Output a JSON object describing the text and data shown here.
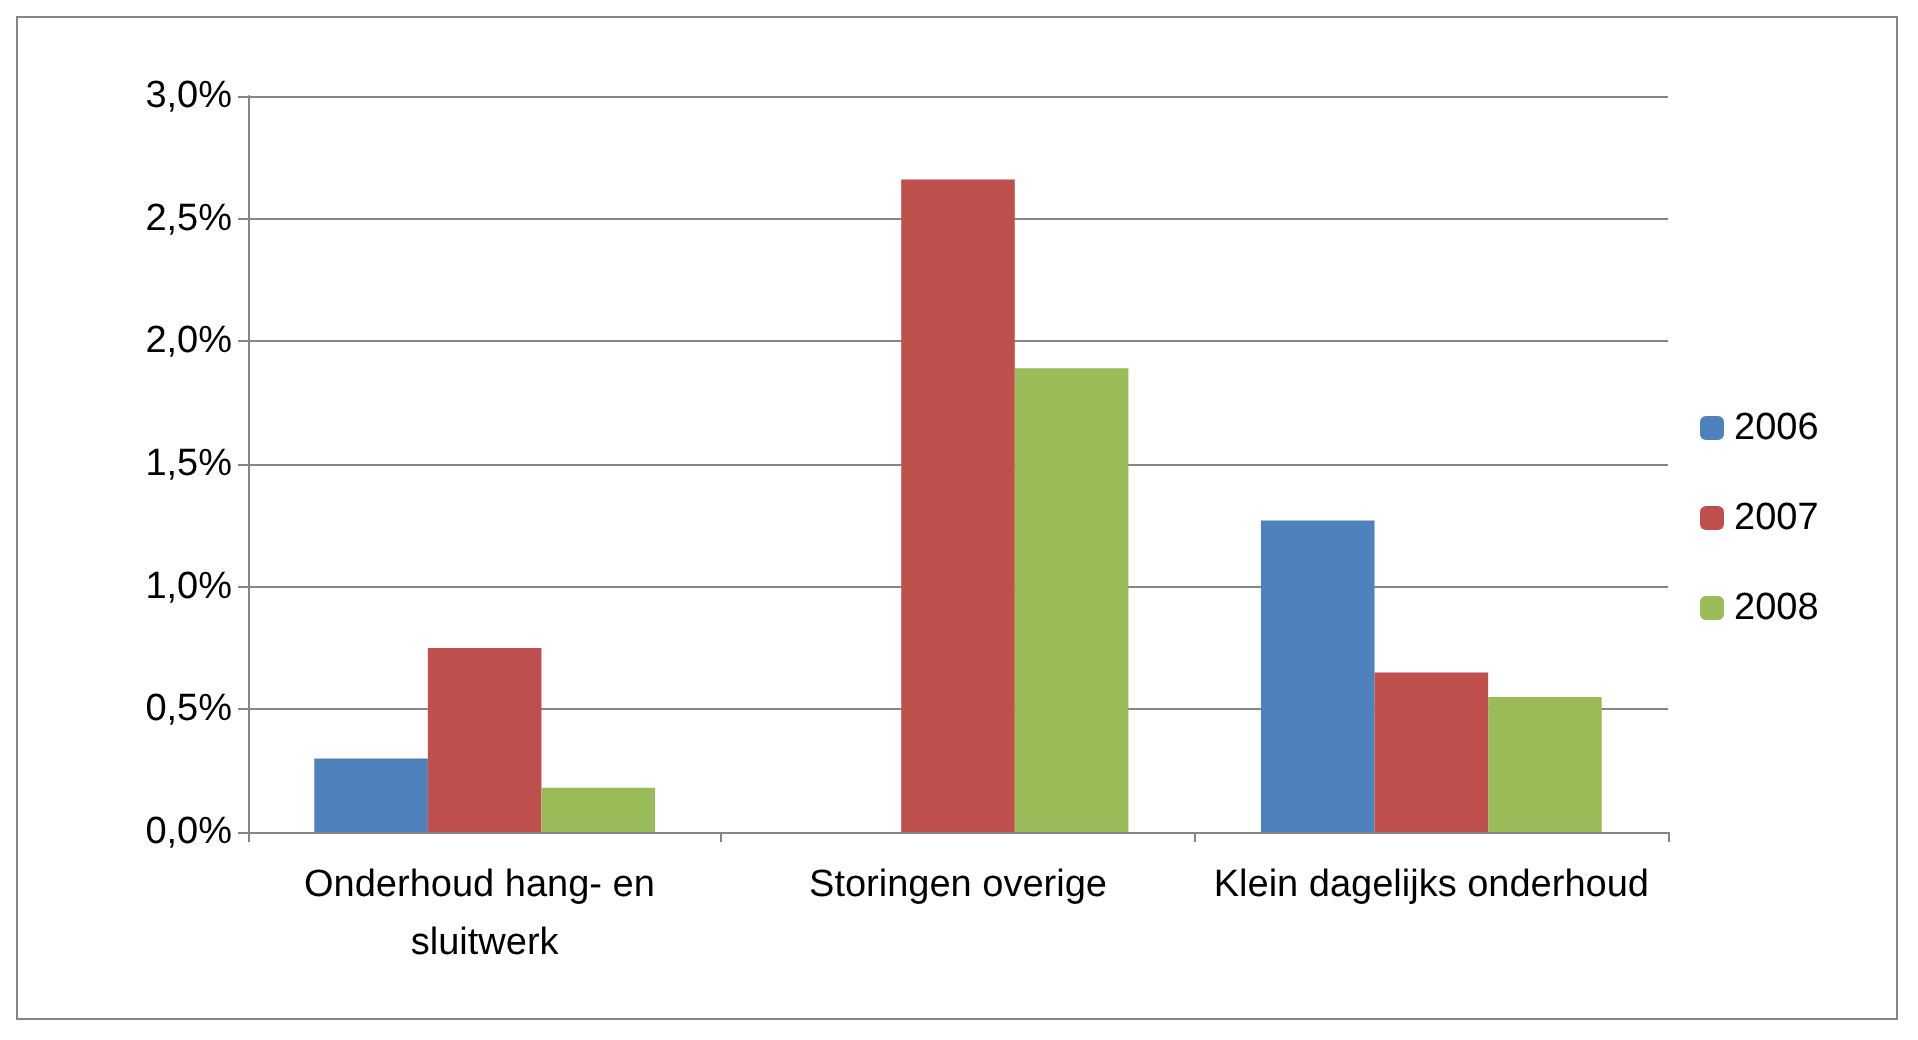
{
  "chart_data": {
    "type": "bar",
    "categories": [
      "Onderhoud hang- en sluitwerk",
      "Storingen overige",
      "Klein dagelijks onderhoud"
    ],
    "series": [
      {
        "name": "2006",
        "color": "#4f81bd",
        "values": [
          0.3,
          0,
          1.27
        ]
      },
      {
        "name": "2007",
        "color": "#c0504d",
        "values": [
          0.75,
          2.66,
          0.65
        ]
      },
      {
        "name": "2008",
        "color": "#9bbb59",
        "values": [
          0.18,
          1.89,
          0.55
        ]
      }
    ],
    "ylim": [
      0,
      3
    ],
    "yticks": [
      {
        "value": 0,
        "label": "0,0%"
      },
      {
        "value": 0.5,
        "label": "0,5%"
      },
      {
        "value": 1,
        "label": "1,0%"
      },
      {
        "value": 1.5,
        "label": "1,5%"
      },
      {
        "value": 2,
        "label": "2,0%"
      },
      {
        "value": 2.5,
        "label": "2,5%"
      },
      {
        "value": 3,
        "label": "3,0%"
      }
    ],
    "grid": "y",
    "legend": "right"
  }
}
